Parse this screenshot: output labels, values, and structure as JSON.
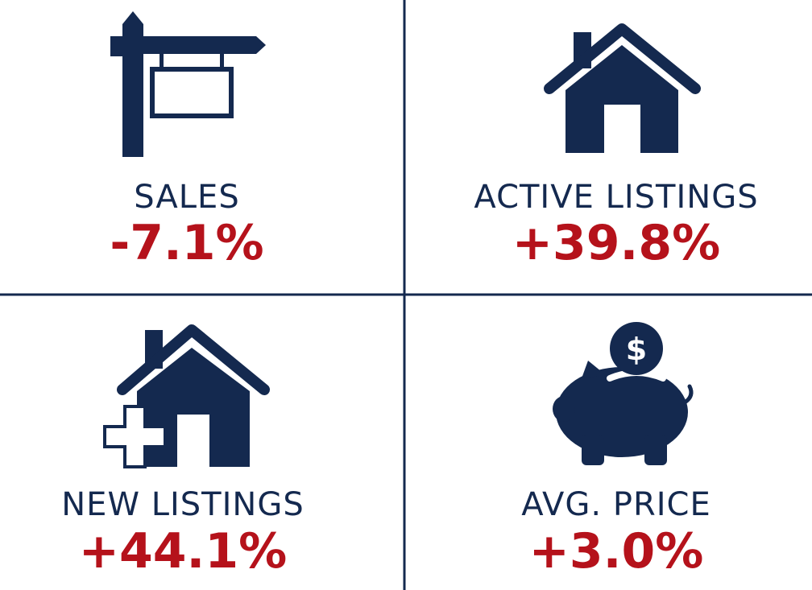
{
  "metrics": [
    {
      "label": "SALES",
      "value": "-7.1%"
    },
    {
      "label": "ACTIVE LISTINGS",
      "value": "+39.8%"
    },
    {
      "label": "NEW LISTINGS",
      "value": "+44.1%"
    },
    {
      "label": "AVG. PRICE",
      "value": "+3.0%"
    }
  ]
}
